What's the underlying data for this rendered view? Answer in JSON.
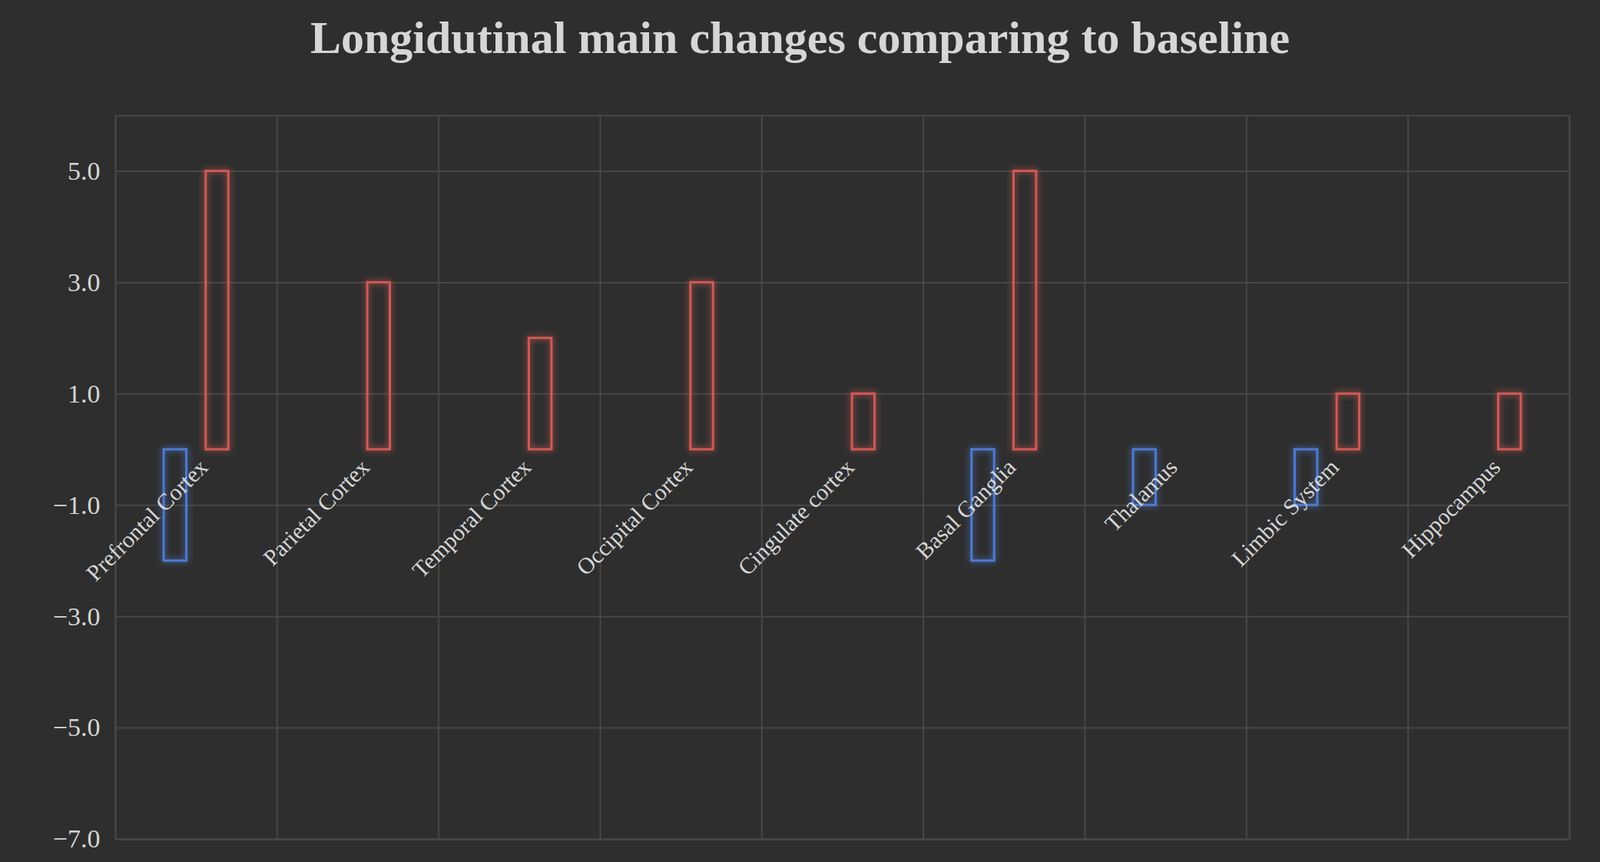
{
  "chart_data": {
    "type": "bar",
    "title": "Longidutinal main changes comparing to baseline",
    "categories": [
      "Prefrontal Cortex",
      "Parietal Cortex",
      "Temporal Cortex",
      "Occipital Cortex",
      "Cingulate cortex",
      "Basal Ganglia",
      "Thalamus",
      "Limbic System",
      "Hippocampus"
    ],
    "series": [
      {
        "color": "#4f7ad1",
        "values": [
          -2,
          null,
          null,
          null,
          null,
          -2,
          -1,
          -1,
          null
        ]
      },
      {
        "color": "#d05a55",
        "values": [
          5,
          3,
          2,
          3,
          1,
          5,
          null,
          1,
          1
        ]
      }
    ],
    "ylim": [
      -7,
      6
    ],
    "yticks": [
      -7,
      -5,
      -3,
      -1,
      1,
      3,
      5
    ],
    "grid": true
  }
}
